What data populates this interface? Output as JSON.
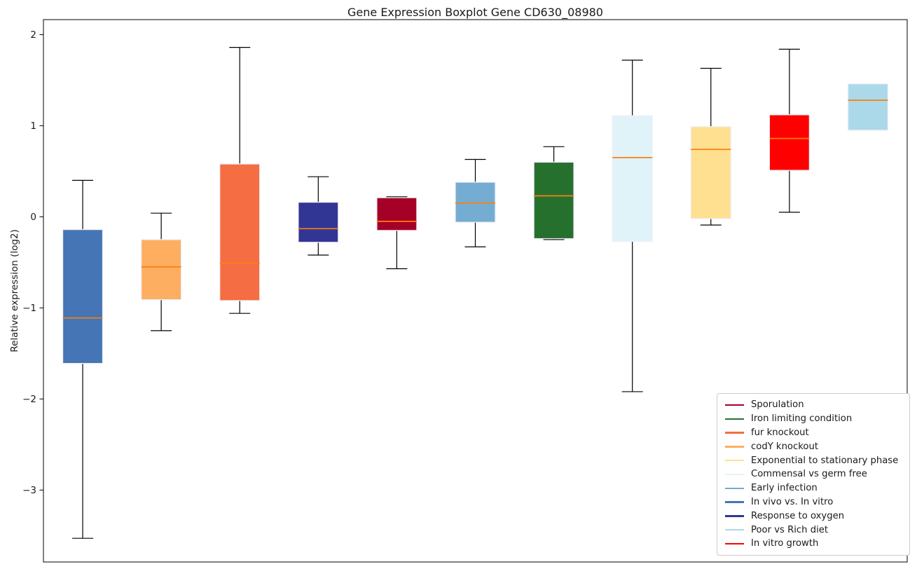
{
  "chart_data": {
    "type": "boxplot",
    "title": "Gene Expression Boxplot Gene CD630_08980",
    "ylabel": "Relative expression (log2)",
    "xlabel": "",
    "ylim": [
      -3.79,
      2.165
    ],
    "yticks": [
      2,
      1,
      0,
      -1,
      -2,
      -3
    ],
    "ytick_labels": [
      "2",
      "1",
      "0",
      "−1",
      "−2",
      "−3"
    ],
    "grid": false,
    "legend_position": "lower right",
    "boxes": [
      {
        "label": "In vivo vs. In vitro",
        "color": "#4575B4",
        "whisker_low": -3.53,
        "q1": -1.61,
        "median": -1.11,
        "q3": -0.14,
        "whisker_high": 0.4
      },
      {
        "label": "codY knockout",
        "color": "#FDAE61",
        "whisker_low": -1.25,
        "q1": -0.91,
        "median": -0.55,
        "q3": -0.25,
        "whisker_high": 0.04
      },
      {
        "label": "fur knockout",
        "color": "#F46D43",
        "whisker_low": -1.06,
        "q1": -0.92,
        "median": -0.51,
        "q3": 0.58,
        "whisker_high": 1.86
      },
      {
        "label": "Response to oxygen",
        "color": "#313695",
        "whisker_low": -0.42,
        "q1": -0.28,
        "median": -0.13,
        "q3": 0.16,
        "whisker_high": 0.44
      },
      {
        "label": "Sporulation",
        "color": "#A50026",
        "whisker_low": -0.57,
        "q1": -0.15,
        "median": -0.05,
        "q3": 0.21,
        "whisker_high": 0.22
      },
      {
        "label": "Early infection",
        "color": "#74ADD1",
        "whisker_low": -0.33,
        "q1": -0.06,
        "median": 0.15,
        "q3": 0.38,
        "whisker_high": 0.63
      },
      {
        "label": "Iron limiting condition",
        "color": "#26702E",
        "whisker_low": -0.25,
        "q1": -0.24,
        "median": 0.23,
        "q3": 0.6,
        "whisker_high": 0.77
      },
      {
        "label": "Commensal vs germ free",
        "color": "#E0F3F8",
        "whisker_low": -1.92,
        "q1": -0.27,
        "median": 0.65,
        "q3": 1.11,
        "whisker_high": 1.72
      },
      {
        "label": "Exponential to stationary phase",
        "color": "#FEE090",
        "whisker_low": -0.09,
        "q1": -0.02,
        "median": 0.74,
        "q3": 0.99,
        "whisker_high": 1.63
      },
      {
        "label": "In vitro growth",
        "color": "#FF0000",
        "whisker_low": 0.05,
        "q1": 0.51,
        "median": 0.86,
        "q3": 1.12,
        "whisker_high": 1.84
      },
      {
        "label": "Poor vs Rich diet",
        "color": "#ABD9E9",
        "whisker_low": 0.95,
        "q1": 0.95,
        "median": 1.28,
        "q3": 1.46,
        "whisker_high": 1.46
      }
    ],
    "legend": [
      {
        "label": "Sporulation",
        "color": "#A50026"
      },
      {
        "label": "Iron limiting condition",
        "color": "#26702E"
      },
      {
        "label": "fur knockout",
        "color": "#F46D43"
      },
      {
        "label": "codY knockout",
        "color": "#FDAE61"
      },
      {
        "label": "Exponential to stationary phase",
        "color": "#FEE090"
      },
      {
        "label": "Commensal vs germ free",
        "color": "#E0F3F8"
      },
      {
        "label": "Early infection",
        "color": "#74ADD1"
      },
      {
        "label": "In vivo vs. In vitro",
        "color": "#4575B4"
      },
      {
        "label": "Response to oxygen",
        "color": "#313695"
      },
      {
        "label": "Poor vs Rich diet",
        "color": "#ABD9E9"
      },
      {
        "label": "In vitro growth",
        "color": "#FF0000"
      }
    ],
    "style": {
      "median_color": "#FF7F0E",
      "whisker_color": "#000000",
      "box_edge_color": "#EFEFF7",
      "spine_color": "#000000",
      "legend_border_color": "#CCCCCC",
      "background": "#FFFFFF"
    }
  }
}
